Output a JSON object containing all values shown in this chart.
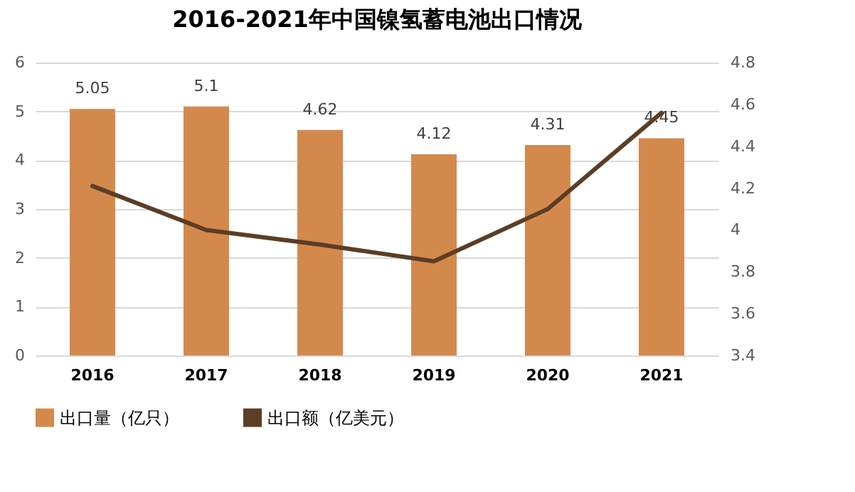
{
  "chart_data": {
    "type": "bar",
    "title": "2016-2021年中国镍氢蓄电池出口情况",
    "categories": [
      "2016",
      "2017",
      "2018",
      "2019",
      "2020",
      "2021"
    ],
    "series": [
      {
        "name": "出口量（亿只）",
        "color": "#d4894c",
        "values": [
          5.05,
          5.1,
          4.62,
          4.12,
          4.31,
          4.45
        ],
        "value_labels": [
          "5.05",
          "5.1",
          "4.62",
          "4.12",
          "4.31",
          "4.45"
        ]
      },
      {
        "name": "出口额（亿美元）",
        "type": "line",
        "axis": "y2",
        "color": "#5c3d26",
        "values": [
          4.21,
          4.0,
          3.93,
          3.85,
          4.1,
          4.56
        ]
      }
    ],
    "ylim": [
      0,
      6
    ],
    "yticks": [
      0,
      1,
      2,
      3,
      4,
      5,
      6
    ],
    "y2lim": [
      3.4,
      4.8
    ],
    "y2ticks": [
      3.4,
      3.6,
      3.8,
      {
        "value": 4,
        "label": "4"
      },
      4.2,
      4.4,
      4.6,
      4.8
    ],
    "grid": "y",
    "legend": "bottom",
    "marker": "none"
  }
}
